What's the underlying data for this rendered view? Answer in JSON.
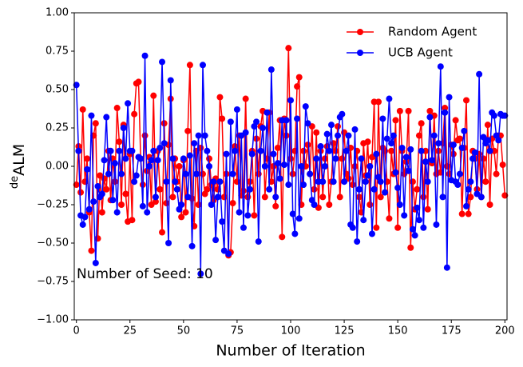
{
  "chart_data": {
    "type": "line",
    "xlabel": "Number of Iteration",
    "ylabel": {
      "superscript": "de",
      "text": "ALM"
    },
    "annotation": "Number of Seed: 10",
    "legend": "upper right",
    "xlim": [
      -1,
      201
    ],
    "ylim": [
      -1,
      1
    ],
    "xticks": [
      0,
      25,
      50,
      75,
      100,
      125,
      150,
      175,
      200
    ],
    "yticks": [
      {
        "value": -1,
        "label": "−1.00"
      },
      {
        "value": -0.75,
        "label": "−0.75"
      },
      {
        "value": -0.5,
        "label": "−0.50"
      },
      {
        "value": -0.25,
        "label": "−0.25"
      },
      {
        "value": 0,
        "label": "0.00"
      },
      {
        "value": 0.25,
        "label": "0.25"
      },
      {
        "value": 0.5,
        "label": "0.50"
      },
      {
        "value": 0.75,
        "label": "0.75"
      },
      {
        "value": 1,
        "label": "1.00"
      }
    ],
    "x": [
      0,
      1,
      2,
      3,
      4,
      5,
      6,
      7,
      8,
      9,
      10,
      11,
      12,
      13,
      14,
      15,
      16,
      17,
      18,
      19,
      20,
      21,
      22,
      23,
      24,
      25,
      26,
      27,
      28,
      29,
      30,
      31,
      32,
      33,
      34,
      35,
      36,
      37,
      38,
      39,
      40,
      41,
      42,
      43,
      44,
      45,
      46,
      47,
      48,
      49,
      50,
      51,
      52,
      53,
      54,
      55,
      56,
      57,
      58,
      59,
      60,
      61,
      62,
      63,
      64,
      65,
      66,
      67,
      68,
      69,
      70,
      71,
      72,
      73,
      74,
      75,
      76,
      77,
      78,
      79,
      80,
      81,
      82,
      83,
      84,
      85,
      86,
      87,
      88,
      89,
      90,
      91,
      92,
      93,
      94,
      95,
      96,
      97,
      98,
      99,
      100,
      101,
      102,
      103,
      104,
      105,
      106,
      107,
      108,
      109,
      110,
      111,
      112,
      113,
      114,
      115,
      116,
      117,
      118,
      119,
      120,
      121,
      122,
      123,
      124,
      125,
      126,
      127,
      128,
      129,
      130,
      131,
      132,
      133,
      134,
      135,
      136,
      137,
      138,
      139,
      140,
      141,
      142,
      143,
      144,
      145,
      146,
      147,
      148,
      149,
      150,
      151,
      152,
      153,
      154,
      155,
      156,
      157,
      158,
      159,
      160,
      161,
      162,
      163,
      164,
      165,
      166,
      167,
      168,
      169,
      170,
      171,
      172,
      173,
      174,
      175,
      176,
      177,
      178,
      179,
      180,
      181,
      182,
      183,
      184,
      185,
      186,
      187,
      188,
      189,
      190,
      191,
      192,
      193,
      194,
      195,
      196,
      197,
      198,
      199,
      200
    ],
    "series": [
      {
        "name": "Random Agent",
        "color": "#ff0000",
        "values": [
          -0.12,
          0.13,
          -0.17,
          0.37,
          -0.1,
          0.05,
          -0.3,
          -0.55,
          0.2,
          0.28,
          -0.47,
          -0.06,
          -0.3,
          -0.08,
          -0.15,
          0.1,
          -0.22,
          0.05,
          -0.1,
          0.38,
          0.16,
          -0.25,
          0.27,
          -0.18,
          -0.36,
          0.08,
          -0.35,
          0.34,
          0.54,
          0.55,
          0.05,
          -0.12,
          0.2,
          -0.03,
          0.06,
          -0.25,
          0.46,
          -0.23,
          0.1,
          -0.15,
          -0.43,
          0.28,
          -0.24,
          0.14,
          0.44,
          -0.2,
          0.05,
          -0.1,
          0.0,
          -0.33,
          0.04,
          -0.3,
          0.23,
          0.66,
          -0.21,
          -0.39,
          0.1,
          -0.25,
          0.12,
          -0.05,
          -0.18,
          -0.15,
          0.05,
          -0.12,
          -0.22,
          -0.08,
          -0.15,
          0.45,
          0.31,
          -0.2,
          -0.05,
          -0.58,
          -0.56,
          -0.24,
          0.13,
          -0.1,
          0.2,
          -0.19,
          -0.16,
          0.44,
          -0.2,
          -0.1,
          0.1,
          -0.32,
          0.18,
          -0.05,
          0.26,
          0.36,
          -0.2,
          0.05,
          0.35,
          -0.1,
          0.0,
          -0.26,
          0.12,
          0.3,
          -0.46,
          0.31,
          0.2,
          0.77,
          0.05,
          -0.05,
          0.1,
          0.52,
          0.58,
          -0.25,
          0.1,
          0.0,
          0.14,
          -0.05,
          0.26,
          -0.15,
          0.22,
          -0.27,
          0.1,
          -0.2,
          0.05,
          0.13,
          -0.25,
          -0.1,
          0.15,
          0.1,
          0.26,
          -0.2,
          0.05,
          0.22,
          -0.05,
          -0.08,
          0.12,
          -0.12,
          0.0,
          0.1,
          -0.2,
          -0.3,
          0.15,
          -0.06,
          0.16,
          -0.25,
          0.06,
          0.42,
          -0.4,
          0.42,
          -0.2,
          0.12,
          0.1,
          -0.1,
          -0.34,
          0.1,
          -0.05,
          0.3,
          -0.4,
          0.36,
          0.1,
          -0.05,
          0.03,
          0.36,
          -0.53,
          -0.1,
          -0.28,
          -0.15,
          0.2,
          0.28,
          -0.2,
          0.1,
          -0.28,
          0.36,
          0.02,
          0.33,
          -0.05,
          0.1,
          -0.04,
          0.15,
          0.38,
          0.0,
          -0.05,
          0.14,
          0.08,
          0.3,
          0.17,
          0.18,
          -0.31,
          0.12,
          0.43,
          -0.31,
          -0.2,
          0.1,
          0.05,
          -0.15,
          0.08,
          -0.2,
          0.05,
          -0.1,
          0.27,
          -0.25,
          0.18,
          0.1,
          -0.05,
          0.2,
          0.2,
          0.01,
          -0.19
        ]
      },
      {
        "name": "UCB Agent",
        "color": "#0000ff",
        "values": [
          0.53,
          0.1,
          -0.32,
          -0.38,
          -0.33,
          -0.02,
          -0.28,
          0.33,
          -0.23,
          -0.63,
          -0.13,
          -0.2,
          -0.18,
          0.04,
          0.32,
          -0.05,
          0.1,
          -0.22,
          0.02,
          -0.3,
          0.1,
          -0.05,
          0.25,
          0.05,
          0.41,
          0.1,
          0.1,
          -0.1,
          -0.06,
          0.06,
          0.05,
          -0.26,
          0.72,
          -0.3,
          0.0,
          0.04,
          0.1,
          -0.2,
          0.04,
          0.12,
          0.68,
          0.15,
          -0.1,
          -0.5,
          0.56,
          0.05,
          -0.1,
          -0.15,
          -0.28,
          -0.25,
          0.05,
          -0.05,
          -0.2,
          0.07,
          -0.52,
          0.15,
          -0.05,
          0.2,
          -0.7,
          0.66,
          0.2,
          0.1,
          0.0,
          -0.25,
          -0.1,
          -0.48,
          -0.2,
          -0.1,
          -0.36,
          -0.55,
          0.08,
          -0.57,
          0.29,
          -0.05,
          0.1,
          0.37,
          -0.3,
          0.2,
          -0.4,
          0.22,
          -0.32,
          -0.15,
          0.08,
          0.26,
          0.29,
          -0.49,
          0.1,
          0.25,
          0.0,
          0.35,
          -0.15,
          0.63,
          0.08,
          -0.2,
          0.02,
          -0.08,
          0.3,
          0.01,
          0.3,
          -0.12,
          0.43,
          -0.31,
          -0.44,
          0.31,
          -0.34,
          0.0,
          -0.12,
          0.39,
          0.28,
          -0.05,
          -0.22,
          -0.25,
          0.05,
          -0.1,
          0.13,
          -0.1,
          0.0,
          0.21,
          0.1,
          0.27,
          -0.1,
          0.05,
          0.2,
          0.32,
          0.34,
          -0.1,
          0.1,
          0.2,
          -0.38,
          -0.4,
          0.24,
          -0.49,
          -0.15,
          0.05,
          -0.35,
          -0.1,
          -0.06,
          0.0,
          -0.44,
          -0.15,
          0.08,
          -0.07,
          -0.1,
          0.31,
          -0.17,
          0.18,
          0.44,
          0.15,
          0.2,
          -0.04,
          -0.14,
          -0.25,
          0.12,
          -0.32,
          0.06,
          -0.03,
          0.11,
          -0.41,
          -0.45,
          -0.27,
          -0.35,
          0.1,
          -0.4,
          0.03,
          -0.1,
          0.32,
          0.04,
          0.2,
          -0.38,
          0.15,
          0.65,
          -0.2,
          0.35,
          -0.66,
          0.45,
          -0.09,
          0.14,
          -0.1,
          -0.12,
          -0.05,
          0.12,
          0.23,
          -0.26,
          -0.15,
          -0.1,
          0.05,
          0.09,
          -0.18,
          0.6,
          -0.2,
          0.19,
          0.15,
          0.17,
          0.1,
          0.35,
          0.33,
          0.2,
          0.17,
          0.34,
          0.33,
          0.33
        ]
      }
    ]
  }
}
